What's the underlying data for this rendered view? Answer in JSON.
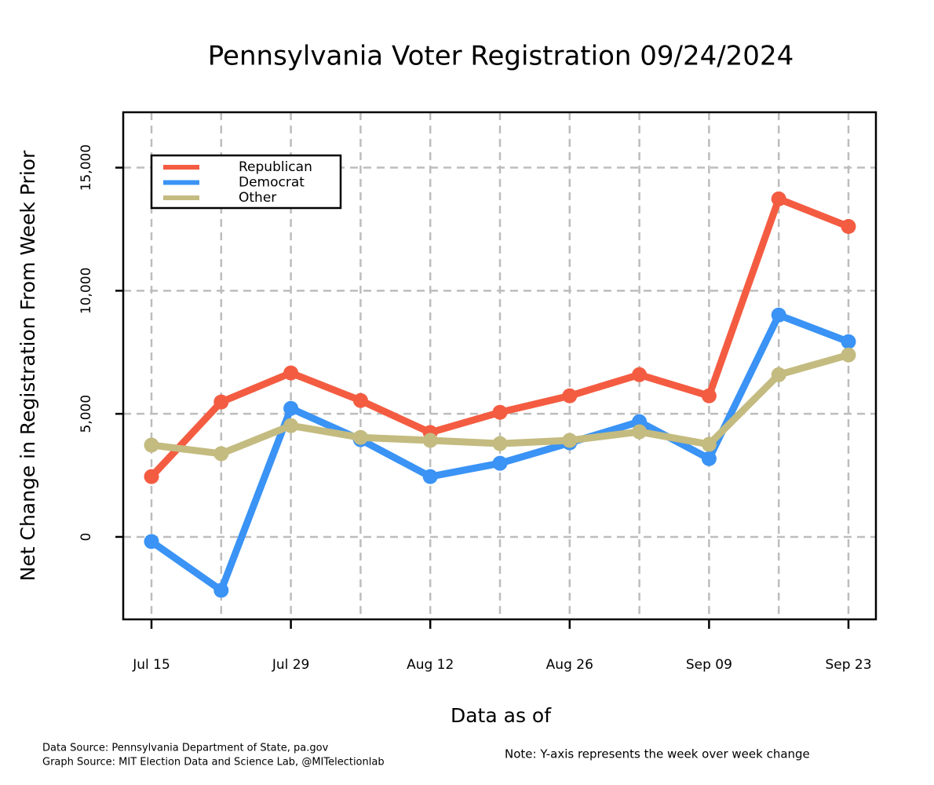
{
  "chart_data": {
    "type": "line",
    "title": "Pennsylvania Voter Registration 09/24/2024",
    "x_label": "Data as of",
    "y_label": "Net Change in Registration From Week Prior",
    "categories": [
      "Jul 15",
      null,
      "Jul 29",
      null,
      "Aug 12",
      null,
      "Aug 26",
      null,
      "Sep 09",
      null,
      "Sep 23"
    ],
    "series": [
      {
        "name": "Republican",
        "color": "#f45c42",
        "values": [
          2450,
          5480,
          6660,
          5540,
          4240,
          5060,
          5730,
          6590,
          5730,
          13730,
          12610
        ]
      },
      {
        "name": "Democrat",
        "color": "#3a93f5",
        "values": [
          -190,
          -2170,
          5220,
          3950,
          2450,
          2990,
          3820,
          4680,
          3180,
          9010,
          7930
        ]
      },
      {
        "name": "Other",
        "color": "#c4bb80",
        "values": [
          3730,
          3380,
          4520,
          4040,
          3920,
          3790,
          3920,
          4270,
          3760,
          6590,
          7390
        ]
      }
    ],
    "ylim": [
      -3350,
      17250
    ],
    "yticks": [
      0,
      {
        "value": 5000,
        "label": "5,000"
      },
      {
        "value": 10000,
        "label": "10,000"
      },
      {
        "value": 15000,
        "label": "15,000"
      }
    ],
    "grid": true,
    "legend": "upper left",
    "sources": [
      "Data Source: Pennsylvania Department of State, pa.gov",
      "Graph Source: MIT Election Data and Science Lab, @MITelectionlab"
    ],
    "note": "Note: Y-axis represents the week over week change"
  }
}
